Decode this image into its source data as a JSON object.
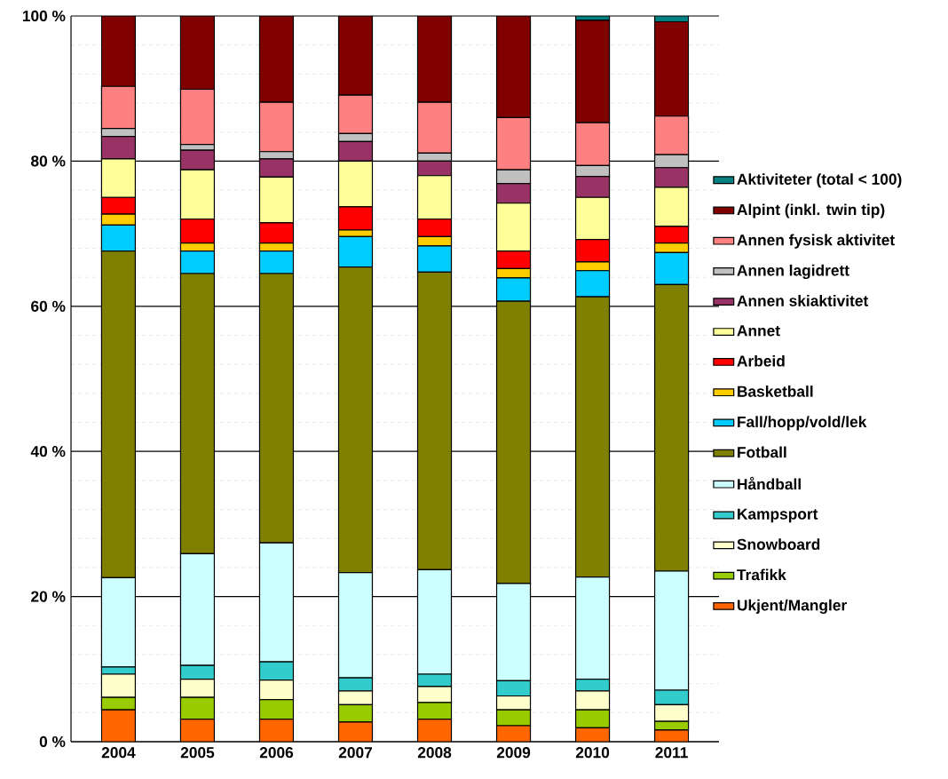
{
  "chart_data": {
    "type": "bar",
    "stacked": true,
    "categories": [
      "2004",
      "2005",
      "2006",
      "2007",
      "2008",
      "2009",
      "2010",
      "2011"
    ],
    "ylim": [
      0,
      100
    ],
    "yticks": [
      {
        "value": 0,
        "label": "0 %"
      },
      {
        "value": 20,
        "label": "20 %"
      },
      {
        "value": 40,
        "label": "40 %"
      },
      {
        "value": 60,
        "label": "60 %"
      },
      {
        "value": 80,
        "label": "80 %"
      },
      {
        "value": 100,
        "label": "100 %"
      }
    ],
    "grid": "y",
    "legend": "right",
    "series": [
      {
        "name": "Ukjent/Mangler",
        "color": "#ff6600",
        "values": [
          4.4,
          3.1,
          3.1,
          2.7,
          3.1,
          2.2,
          1.9,
          1.6
        ]
      },
      {
        "name": "Trafikk",
        "color": "#99cc00",
        "values": [
          1.7,
          3.0,
          2.7,
          2.4,
          2.3,
          2.2,
          2.5,
          1.2
        ]
      },
      {
        "name": "Snowboard",
        "color": "#ffffcc",
        "values": [
          3.2,
          2.5,
          2.7,
          1.9,
          2.2,
          1.9,
          2.6,
          2.3
        ]
      },
      {
        "name": "Kampsport",
        "color": "#33cccc",
        "values": [
          1.0,
          1.9,
          2.5,
          1.8,
          1.7,
          2.1,
          1.6,
          2.0
        ]
      },
      {
        "name": "Håndball",
        "color": "#ccffff",
        "values": [
          12.3,
          15.4,
          16.4,
          14.5,
          14.4,
          13.4,
          14.1,
          16.4
        ]
      },
      {
        "name": "Fotball",
        "color": "#808000",
        "values": [
          45.0,
          38.6,
          37.1,
          42.1,
          41.0,
          38.9,
          38.6,
          39.5
        ]
      },
      {
        "name": "Fall/hopp/vold/lek",
        "color": "#00ccff",
        "values": [
          3.6,
          3.1,
          3.1,
          4.2,
          3.6,
          3.2,
          3.6,
          4.4
        ]
      },
      {
        "name": "Basketball",
        "color": "#ffcc00",
        "values": [
          1.5,
          1.1,
          1.1,
          0.9,
          1.3,
          1.3,
          1.2,
          1.3
        ]
      },
      {
        "name": "Arbeid",
        "color": "#ff0000",
        "values": [
          2.3,
          3.3,
          2.8,
          3.2,
          2.4,
          2.4,
          3.1,
          2.3
        ]
      },
      {
        "name": "Annet",
        "color": "#ffff99",
        "values": [
          5.3,
          6.8,
          6.3,
          6.3,
          6.0,
          6.6,
          5.8,
          5.4
        ]
      },
      {
        "name": "Annen skiaktivitet",
        "color": "#993366",
        "values": [
          3.1,
          2.7,
          2.5,
          2.7,
          2.0,
          2.7,
          2.9,
          2.7
        ]
      },
      {
        "name": "Annen lagidrett",
        "color": "#c0c0c0",
        "values": [
          1.1,
          0.8,
          1.0,
          1.1,
          1.1,
          1.9,
          1.5,
          1.8
        ]
      },
      {
        "name": "Annen fysisk aktivitet",
        "color": "#ff8080",
        "values": [
          5.8,
          7.6,
          6.8,
          5.3,
          7.0,
          7.2,
          5.9,
          5.3
        ]
      },
      {
        "name": "Alpint (inkl. twin tip)",
        "color": "#800000",
        "values": [
          9.7,
          10.1,
          11.9,
          10.9,
          11.9,
          14.0,
          14.1,
          13.0
        ]
      },
      {
        "name": "Aktiviteter (total < 100)",
        "color": "#008080",
        "values": [
          0,
          0,
          0,
          0,
          0,
          0,
          0.6,
          0.8
        ]
      }
    ]
  }
}
